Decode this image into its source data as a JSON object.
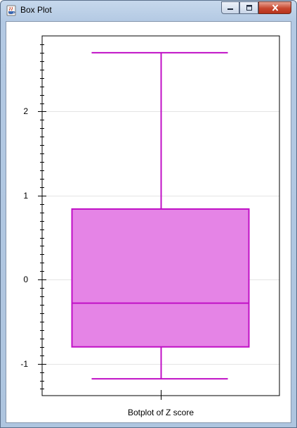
{
  "window": {
    "title": "Box Plot",
    "controls": {
      "minimize": "minimize",
      "maximize": "maximize",
      "close": "close"
    }
  },
  "colors": {
    "box_fill": "#e584e6",
    "box_stroke": "#c010c6",
    "grid": "#e4e4e4",
    "axis": "#000000"
  },
  "icons": {
    "app": "java-cup-icon",
    "minimize": "minimize-icon",
    "maximize": "maximize-icon",
    "close": "close-icon"
  },
  "chart_data": {
    "type": "box",
    "title": "",
    "xlabel": "Botplot of Z score",
    "ylabel": "",
    "ylim": [
      -1.38,
      2.9
    ],
    "yticks": [
      -1,
      0,
      1,
      2
    ],
    "ytick_labels": [
      "-1",
      "0",
      "1",
      "2"
    ],
    "minor_tick_step": 0.1,
    "grid": true,
    "series": [
      {
        "whisker_low": -1.18,
        "q1": -0.8,
        "median": -0.28,
        "q3": 0.84,
        "whisker_high": 2.7
      }
    ]
  }
}
